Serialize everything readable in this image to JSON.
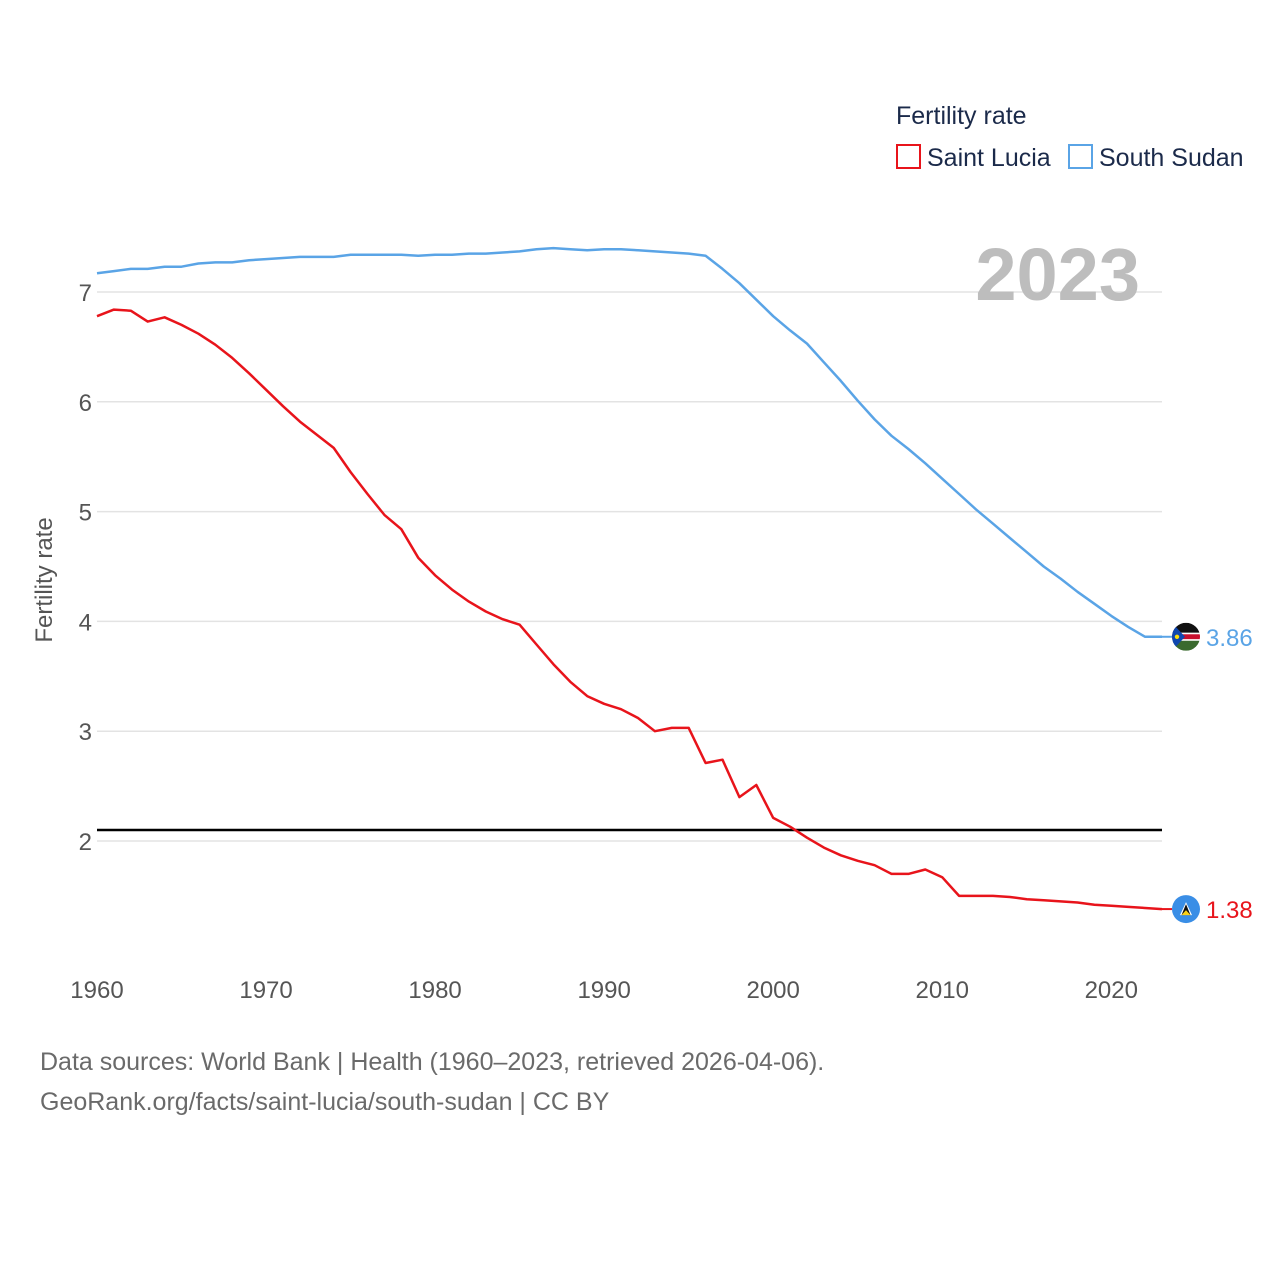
{
  "chart_data": {
    "type": "line",
    "ylabel": "Fertility rate",
    "legend_title": "Fertility rate",
    "legend_position": "top-right",
    "current_year_label": "2023",
    "ylim": [
      1.0,
      7.5
    ],
    "xlim": [
      1960,
      2023
    ],
    "y_ticks": [
      2,
      3,
      4,
      5,
      6,
      7
    ],
    "x_ticks": [
      1960,
      1970,
      1980,
      1990,
      2000,
      2010,
      2020
    ],
    "reference_line": {
      "y": 2.1,
      "color": "#000000"
    },
    "x": [
      1960,
      1961,
      1962,
      1963,
      1964,
      1965,
      1966,
      1967,
      1968,
      1969,
      1970,
      1971,
      1972,
      1973,
      1974,
      1975,
      1976,
      1977,
      1978,
      1979,
      1980,
      1981,
      1982,
      1983,
      1984,
      1985,
      1986,
      1987,
      1988,
      1989,
      1990,
      1991,
      1992,
      1993,
      1994,
      1995,
      1996,
      1997,
      1998,
      1999,
      2000,
      2001,
      2002,
      2003,
      2004,
      2005,
      2006,
      2007,
      2008,
      2009,
      2010,
      2011,
      2012,
      2013,
      2014,
      2015,
      2016,
      2017,
      2018,
      2019,
      2020,
      2021,
      2022,
      2023
    ],
    "series": [
      {
        "name": "Saint Lucia",
        "color": "#e8141b",
        "end_label": "1.38",
        "values": [
          6.78,
          6.84,
          6.83,
          6.73,
          6.77,
          6.7,
          6.62,
          6.52,
          6.4,
          6.26,
          6.11,
          5.96,
          5.82,
          5.7,
          5.58,
          5.36,
          5.16,
          4.97,
          4.84,
          4.58,
          4.42,
          4.29,
          4.18,
          4.09,
          4.02,
          3.97,
          3.79,
          3.61,
          3.45,
          3.32,
          3.25,
          3.2,
          3.12,
          3.0,
          3.03,
          3.03,
          2.71,
          2.74,
          2.4,
          2.51,
          2.21,
          2.13,
          2.03,
          1.94,
          1.87,
          1.82,
          1.78,
          1.7,
          1.7,
          1.74,
          1.67,
          1.5,
          1.5,
          1.5,
          1.49,
          1.47,
          1.46,
          1.45,
          1.44,
          1.42,
          1.41,
          1.4,
          1.39,
          1.38
        ]
      },
      {
        "name": "South Sudan",
        "color": "#5aa4e6",
        "end_label": "3.86",
        "values": [
          7.17,
          7.19,
          7.21,
          7.21,
          7.23,
          7.23,
          7.26,
          7.27,
          7.27,
          7.29,
          7.3,
          7.31,
          7.32,
          7.32,
          7.32,
          7.34,
          7.34,
          7.34,
          7.34,
          7.33,
          7.34,
          7.34,
          7.35,
          7.35,
          7.36,
          7.37,
          7.39,
          7.4,
          7.39,
          7.38,
          7.39,
          7.39,
          7.38,
          7.37,
          7.36,
          7.35,
          7.33,
          7.21,
          7.08,
          6.93,
          6.78,
          6.65,
          6.53,
          6.36,
          6.19,
          6.01,
          5.84,
          5.69,
          5.57,
          5.44,
          5.3,
          5.16,
          5.02,
          4.89,
          4.76,
          4.63,
          4.5,
          4.39,
          4.27,
          4.16,
          4.05,
          3.95,
          3.86,
          3.86
        ]
      }
    ]
  },
  "footer": {
    "source_line1": "Data sources: World Bank | Health (1960–2023, retrieved 2026-04-06).",
    "source_line2": "GeoRank.org/facts/saint-lucia/south-sudan | CC BY"
  }
}
